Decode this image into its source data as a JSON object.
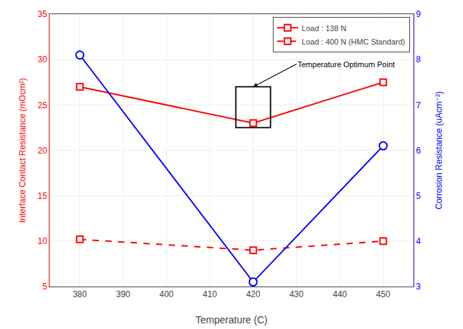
{
  "chart_data": {
    "type": "line",
    "xlabel": "Temperature (C)",
    "ylabel": "Interface Contact Resistance (mOcm²)",
    "y2label": "Corrosion Resistance (uAcm⁻²)",
    "x": [
      380,
      420,
      450
    ],
    "series": [
      {
        "name": "Load : 138 N",
        "color": "#FF0000",
        "marker": "square",
        "line_style": "solid",
        "values": [
          27.0,
          23.0,
          27.5
        ]
      },
      {
        "name": "Load : 400 N (HMC Standard)",
        "color": "#FF0000",
        "marker": "square",
        "line_style": "dashed",
        "values": [
          10.2,
          9.0,
          10.0
        ]
      },
      {
        "color": "#0000FF",
        "marker": "circle",
        "line_style": "solid",
        "axis": "y2",
        "values": [
          8.1,
          3.1,
          6.1
        ]
      }
    ],
    "xlim": [
      373,
      457
    ],
    "xticks": [
      380,
      390,
      400,
      410,
      420,
      430,
      440,
      450
    ],
    "ylim": [
      5,
      35
    ],
    "yticks": [
      5,
      10,
      15,
      20,
      25,
      30,
      35
    ],
    "y2lim": [
      3,
      9
    ],
    "y2ticks": [
      3,
      4,
      5,
      6,
      7,
      8,
      9
    ],
    "grid": true,
    "legend": "upper right",
    "annotations": [
      {
        "text": "Temperature Optimum Point",
        "x": 430,
        "y": 29.5,
        "arrow_x": 420,
        "arrow_y": 27.0
      }
    ],
    "boxes": [
      {
        "x": [
          416,
          424
        ],
        "y": [
          22.5,
          27
        ]
      }
    ]
  }
}
